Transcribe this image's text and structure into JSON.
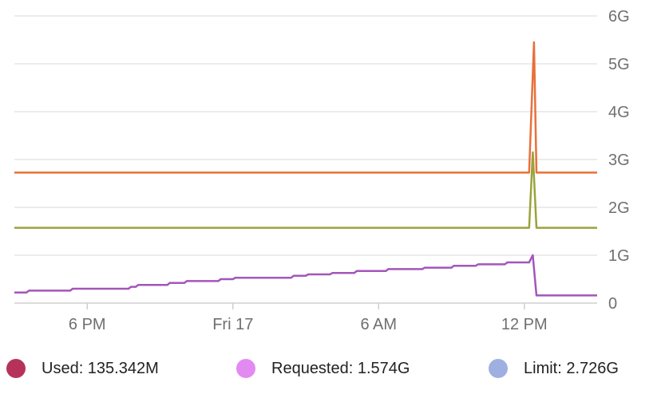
{
  "chart_data": {
    "type": "line",
    "y_ticks": [
      {
        "label": "0",
        "value": 0
      },
      {
        "label": "1G",
        "value": 1
      },
      {
        "label": "2G",
        "value": 2
      },
      {
        "label": "3G",
        "value": 3
      },
      {
        "label": "4G",
        "value": 4
      },
      {
        "label": "5G",
        "value": 5
      },
      {
        "label": "6G",
        "value": 6
      }
    ],
    "ylim": [
      0,
      6
    ],
    "x_ticks": [
      {
        "label": "6 PM",
        "value": 3
      },
      {
        "label": "Fri 17",
        "value": 9
      },
      {
        "label": "6 AM",
        "value": 15
      },
      {
        "label": "12 PM",
        "value": 21
      }
    ],
    "xlim": [
      0,
      24
    ],
    "grid": true,
    "series": [
      {
        "name": "limit",
        "color": "#e8703a",
        "x": [
          0,
          21.2,
          21.4,
          21.5,
          21.6,
          24
        ],
        "y": [
          2.726,
          2.726,
          5.45,
          2.726,
          2.726,
          2.726
        ]
      },
      {
        "name": "requested",
        "color": "#9aa33b",
        "x": [
          0,
          21.2,
          21.35,
          21.5,
          21.6,
          24
        ],
        "y": [
          1.574,
          1.574,
          3.15,
          1.574,
          1.574,
          1.574
        ]
      },
      {
        "name": "used",
        "color": "#a356b8",
        "x": [
          0,
          0.5,
          0.6,
          2.3,
          2.4,
          4.7,
          4.8,
          5.0,
          5.1,
          6.3,
          6.4,
          7.0,
          7.1,
          8.4,
          8.5,
          9.0,
          9.1,
          11.4,
          11.5,
          12.0,
          12.1,
          13.0,
          13.1,
          14.0,
          14.1,
          15.3,
          15.4,
          16.8,
          16.9,
          18.0,
          18.1,
          19.0,
          19.1,
          20.2,
          20.3,
          21.2,
          21.35,
          21.5,
          21.6,
          24
        ],
        "y": [
          0.22,
          0.22,
          0.26,
          0.26,
          0.3,
          0.3,
          0.34,
          0.34,
          0.38,
          0.38,
          0.42,
          0.42,
          0.46,
          0.46,
          0.5,
          0.5,
          0.53,
          0.53,
          0.57,
          0.57,
          0.6,
          0.6,
          0.63,
          0.63,
          0.67,
          0.67,
          0.71,
          0.71,
          0.74,
          0.74,
          0.78,
          0.78,
          0.81,
          0.81,
          0.85,
          0.85,
          1.0,
          0.16,
          0.16,
          0.16
        ]
      }
    ]
  },
  "legend": [
    {
      "label": "Used: 135.342M",
      "color": "#b7325a"
    },
    {
      "label": "Requested: 1.574G",
      "color": "#e28af2"
    },
    {
      "label": "Limit: 2.726G",
      "color": "#9fafe0"
    }
  ]
}
